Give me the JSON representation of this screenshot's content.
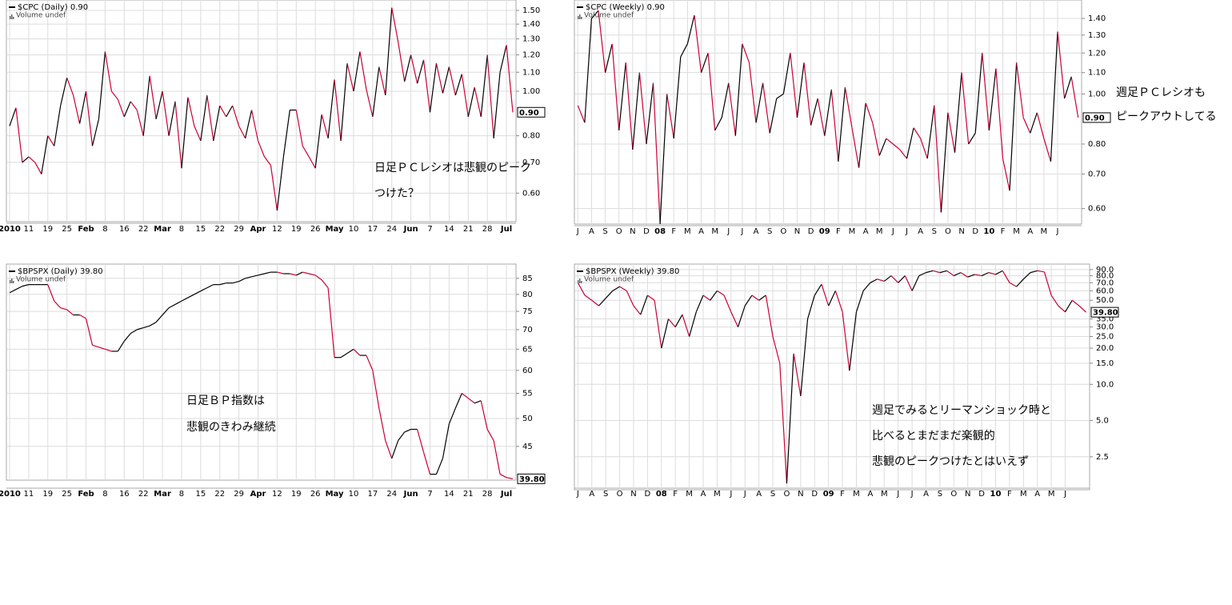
{
  "chart_data": [
    {
      "type": "line",
      "title": "$CPC (Daily) 0.90",
      "volume_label": "Volume undef",
      "log_scale": true,
      "grid": true,
      "up_color": "#000000",
      "down_color": "#cc0033",
      "categories": [
        "2010",
        null,
        null,
        "11",
        null,
        null,
        "19",
        null,
        null,
        "25",
        null,
        null,
        "Feb",
        null,
        null,
        "8",
        null,
        null,
        "16",
        null,
        null,
        "22",
        null,
        null,
        "Mar",
        null,
        null,
        "8",
        null,
        null,
        "15",
        null,
        null,
        "22",
        null,
        null,
        "29",
        null,
        null,
        "Apr",
        null,
        null,
        "12",
        null,
        null,
        "19",
        null,
        null,
        "26",
        null,
        null,
        "May",
        null,
        null,
        "10",
        null,
        null,
        "17",
        null,
        null,
        "24",
        null,
        null,
        "Jun",
        null,
        null,
        "7",
        null,
        null,
        "14",
        null,
        null,
        "21",
        null,
        null,
        "28",
        null,
        null,
        "Jul",
        null
      ],
      "values": [
        0.84,
        0.92,
        0.7,
        0.72,
        0.7,
        0.66,
        0.8,
        0.76,
        0.93,
        1.07,
        0.98,
        0.85,
        1.0,
        0.76,
        0.87,
        1.22,
        1.0,
        0.96,
        0.88,
        0.95,
        0.91,
        0.8,
        1.08,
        0.87,
        1.0,
        0.8,
        0.95,
        0.68,
        0.97,
        0.84,
        0.78,
        0.98,
        0.78,
        0.93,
        0.88,
        0.93,
        0.84,
        0.79,
        0.91,
        0.78,
        0.72,
        0.69,
        0.55,
        0.72,
        0.91,
        0.91,
        0.76,
        0.72,
        0.68,
        0.89,
        0.79,
        1.06,
        0.78,
        1.15,
        1.0,
        1.22,
        1.01,
        0.88,
        1.13,
        0.98,
        1.52,
        1.28,
        1.05,
        1.2,
        1.04,
        1.17,
        0.9,
        1.15,
        0.99,
        1.13,
        0.98,
        1.09,
        0.88,
        1.02,
        0.88,
        1.2,
        0.79,
        1.1,
        1.26,
        0.9
      ],
      "ylim": [
        0.52,
        1.58
      ],
      "yticks": [
        {
          "value": 0.6,
          "label": "0.60"
        },
        {
          "value": 0.7,
          "label": "0.70"
        },
        {
          "value": 0.8,
          "label": "0.80"
        },
        {
          "value": 1.0,
          "label": "1.00"
        },
        {
          "value": 1.1,
          "label": "1.10"
        },
        {
          "value": 1.2,
          "label": "1.20"
        },
        {
          "value": 1.3,
          "label": "1.30"
        },
        {
          "value": 1.4,
          "label": "1.40"
        },
        {
          "value": 1.5,
          "label": "1.50"
        }
      ],
      "current": {
        "value": 0.9,
        "label": "0.90"
      },
      "annotations": [
        "日足ＰＣレシオは悲観のピーク",
        "つけた？"
      ]
    },
    {
      "type": "line",
      "title": "$CPC (Weekly) 0.90",
      "volume_label": "Volume undef",
      "log_scale": true,
      "grid": true,
      "up_color": "#000000",
      "down_color": "#cc0033",
      "categories": [
        "J",
        null,
        "A",
        null,
        "S",
        null,
        "O",
        null,
        "N",
        null,
        "D",
        null,
        "08",
        null,
        "F",
        null,
        "M",
        null,
        "A",
        null,
        "M",
        null,
        "J",
        null,
        "J",
        null,
        "A",
        null,
        "S",
        null,
        "O",
        null,
        "N",
        null,
        "D",
        null,
        "09",
        null,
        "F",
        null,
        "M",
        null,
        "A",
        null,
        "M",
        null,
        "J",
        null,
        "J",
        null,
        "A",
        null,
        "S",
        null,
        "O",
        null,
        "N",
        null,
        "D",
        null,
        "10",
        null,
        "F",
        null,
        "M",
        null,
        "A",
        null,
        "M",
        null,
        "J",
        null,
        null,
        null
      ],
      "values": [
        0.95,
        0.88,
        1.4,
        1.45,
        1.1,
        1.25,
        0.85,
        1.15,
        0.78,
        1.1,
        0.8,
        1.05,
        0.56,
        1.0,
        0.82,
        1.18,
        1.25,
        1.42,
        1.1,
        1.2,
        0.85,
        0.9,
        1.05,
        0.83,
        1.25,
        1.15,
        0.88,
        1.05,
        0.84,
        0.98,
        1.0,
        1.2,
        0.9,
        1.15,
        0.87,
        0.98,
        0.83,
        1.02,
        0.74,
        1.03,
        0.86,
        0.72,
        0.96,
        0.88,
        0.76,
        0.82,
        0.8,
        0.78,
        0.75,
        0.86,
        0.82,
        0.75,
        0.95,
        0.59,
        0.92,
        0.77,
        1.1,
        0.8,
        0.84,
        1.2,
        0.85,
        1.12,
        0.75,
        0.65,
        1.15,
        0.9,
        0.84,
        0.92,
        0.82,
        0.74,
        1.32,
        0.98,
        1.08,
        0.9
      ],
      "ylim": [
        0.56,
        1.52
      ],
      "yticks": [
        {
          "value": 0.6,
          "label": "0.60"
        },
        {
          "value": 0.7,
          "label": "0.70"
        },
        {
          "value": 0.8,
          "label": "0.80"
        },
        {
          "value": 1.0,
          "label": "1.00"
        },
        {
          "value": 1.1,
          "label": "1.10"
        },
        {
          "value": 1.2,
          "label": "1.20"
        },
        {
          "value": 1.3,
          "label": "1.30"
        },
        {
          "value": 1.4,
          "label": "1.40"
        }
      ],
      "current": {
        "value": 0.9,
        "label": "0.90"
      },
      "annotations": [
        "週足ＰＣレシオも",
        "ピークアウトしてる"
      ]
    },
    {
      "type": "line",
      "title": "$BPSPX (Daily) 39.80",
      "volume_label": "Volume undef",
      "log_scale": true,
      "grid": true,
      "up_color": "#000000",
      "down_color": "#cc0033",
      "categories": [
        "2010",
        null,
        null,
        "11",
        null,
        null,
        "19",
        null,
        null,
        "25",
        null,
        null,
        "Feb",
        null,
        null,
        "8",
        null,
        null,
        "16",
        null,
        null,
        "22",
        null,
        null,
        "Mar",
        null,
        null,
        "8",
        null,
        null,
        "15",
        null,
        null,
        "22",
        null,
        null,
        "29",
        null,
        null,
        "Apr",
        null,
        null,
        "12",
        null,
        null,
        "19",
        null,
        null,
        "26",
        null,
        null,
        "May",
        null,
        null,
        "10",
        null,
        null,
        "17",
        null,
        null,
        "24",
        null,
        null,
        "Jun",
        null,
        null,
        "7",
        null,
        null,
        "14",
        null,
        null,
        "21",
        null,
        null,
        "28",
        null,
        null,
        "Jul",
        null
      ],
      "values": [
        80.5,
        81.5,
        82.5,
        83,
        83,
        83,
        83,
        78,
        76,
        75.5,
        74,
        74,
        73,
        66,
        65.5,
        65,
        64.5,
        64.5,
        67,
        69,
        70,
        70.5,
        71,
        72,
        74,
        76,
        77,
        78,
        79,
        80,
        81,
        82,
        83,
        83,
        83.5,
        83.5,
        84,
        85,
        85.5,
        86,
        86.5,
        87,
        87,
        86.5,
        86.5,
        86,
        87,
        86.5,
        86,
        84.5,
        82,
        63,
        63,
        64,
        65,
        63.5,
        63.5,
        60,
        52,
        46,
        43,
        46,
        47.5,
        48,
        48,
        44,
        40.5,
        40.5,
        43,
        49,
        52,
        55,
        54,
        53,
        53.5,
        48,
        46,
        40.5,
        40,
        39.8
      ],
      "ylim": [
        39.6,
        89.7
      ],
      "yticks": [
        45,
        50,
        55,
        60,
        65,
        70,
        75,
        80,
        85
      ],
      "current": {
        "value": 39.8,
        "label": "39.80"
      },
      "annotations": [
        "日足ＢＰ指数は",
        "悲観のきわみ継続"
      ]
    },
    {
      "type": "line",
      "title": "$BPSPX (Weekly) 39.80",
      "volume_label": "Volume undef",
      "log_scale": true,
      "grid": true,
      "up_color": "#000000",
      "down_color": "#cc0033",
      "categories": [
        "J",
        null,
        "A",
        null,
        "S",
        null,
        "O",
        null,
        "N",
        null,
        "D",
        null,
        "08",
        null,
        "F",
        null,
        "M",
        null,
        "A",
        null,
        "M",
        null,
        "J",
        null,
        "J",
        null,
        "A",
        null,
        "S",
        null,
        "O",
        null,
        "N",
        null,
        "D",
        null,
        "09",
        null,
        "F",
        null,
        "M",
        null,
        "A",
        null,
        "M",
        null,
        "J",
        null,
        "J",
        null,
        "A",
        null,
        "S",
        null,
        "O",
        null,
        "N",
        null,
        "D",
        null,
        "10",
        null,
        "F",
        null,
        "M",
        null,
        "A",
        null,
        "M",
        null,
        "J",
        null,
        null,
        null
      ],
      "values": [
        70,
        55,
        50,
        45,
        52,
        60,
        65,
        60,
        45,
        38,
        55,
        50,
        20,
        35,
        30,
        38,
        25,
        40,
        55,
        50,
        60,
        55,
        40,
        30,
        45,
        55,
        50,
        55,
        25,
        15,
        1.5,
        18,
        8,
        35,
        55,
        68,
        45,
        60,
        40,
        13,
        40,
        60,
        70,
        75,
        72,
        80,
        70,
        80,
        60,
        80,
        85,
        88,
        85,
        88,
        80,
        85,
        78,
        82,
        80,
        85,
        82,
        88,
        70,
        65,
        75,
        85,
        88,
        86,
        55,
        45,
        40,
        50,
        45,
        39.8
      ],
      "ylim": [
        1.33,
        100
      ],
      "yticks": [
        2.5,
        {
          "value": 5,
          "label": "5.0"
        },
        {
          "value": 10,
          "label": "10.0"
        },
        {
          "value": 15,
          "label": "15.0"
        },
        {
          "value": 20,
          "label": "20.0"
        },
        {
          "value": 25,
          "label": "25.0"
        },
        {
          "value": 30,
          "label": "30.0"
        },
        {
          "value": 35,
          "label": "35.0"
        },
        {
          "value": 50,
          "label": "50.0"
        },
        {
          "value": 60,
          "label": "60.0"
        },
        {
          "value": 70,
          "label": "70.0"
        },
        {
          "value": 80,
          "label": "80.0"
        },
        {
          "value": 90,
          "label": "90.0"
        }
      ],
      "current": {
        "value": 39.8,
        "label": "39.80"
      },
      "annotations": [
        "週足でみるとリーマンショック時と",
        "比べるとまだまだ楽観的",
        "悲観のピークつけたとはいえず"
      ]
    }
  ]
}
